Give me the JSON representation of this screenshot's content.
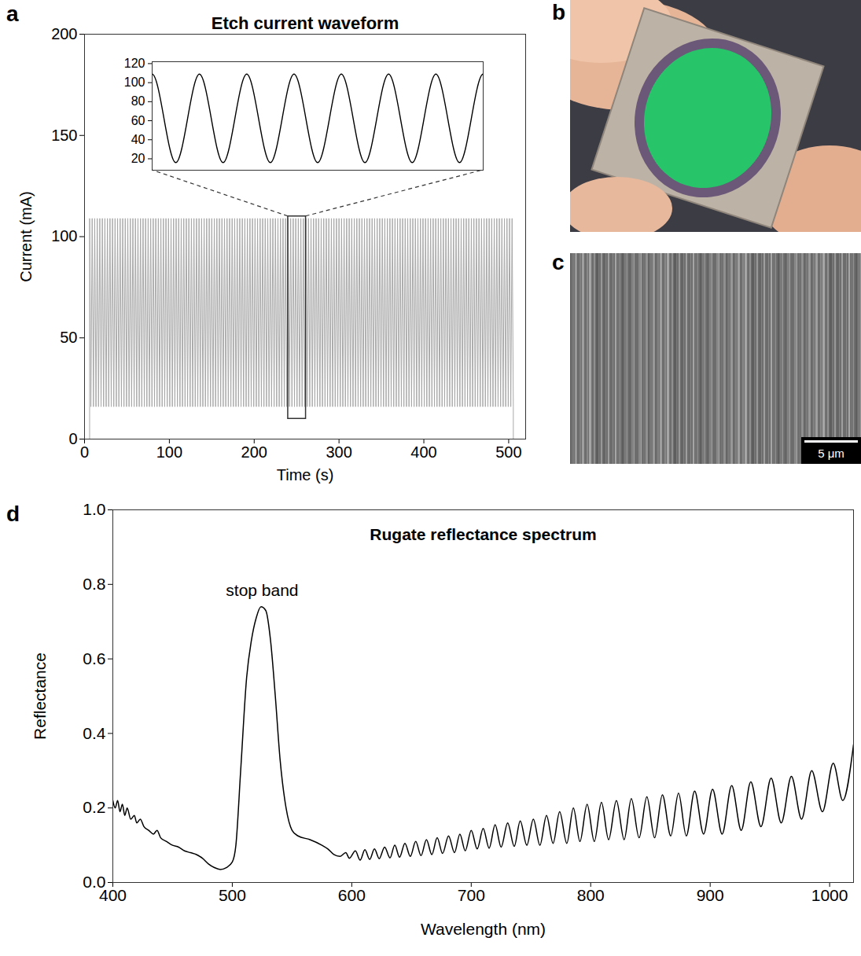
{
  "chart_data": [
    {
      "panel": "a",
      "type": "line",
      "title": "Etch current waveform",
      "x_label": "Time (s)",
      "y_label": "Current (mA)",
      "xlim": [
        0,
        520
      ],
      "ylim": [
        0,
        200
      ],
      "xticks": [
        0,
        100,
        200,
        300,
        400,
        500
      ],
      "yticks": [
        0,
        50,
        100,
        150,
        200
      ],
      "color": "#a8a8a8",
      "x": [
        0,
        6,
        6,
        7.5,
        9,
        10.5,
        12,
        13.5,
        15,
        16.5,
        18,
        19.5,
        21,
        22.5,
        24,
        25.5,
        27,
        28.5,
        30,
        31.5,
        33,
        34.5,
        36,
        37.5,
        39,
        40.5,
        42,
        43.5,
        45,
        46.5,
        48,
        49.5,
        51,
        52.5,
        54,
        55.5,
        57,
        58.5,
        60,
        61.5,
        63,
        64.5,
        66,
        67.5,
        69,
        70.5,
        72,
        73.5,
        75,
        76.5,
        78,
        79.5,
        81,
        82.5,
        84,
        85.5,
        87,
        88.5,
        90,
        91.5,
        93,
        94.5,
        96,
        97.5,
        99,
        100.5,
        102,
        103.5,
        105,
        106.5,
        108,
        109.5,
        111,
        112.5,
        114,
        115.5,
        117,
        118.5,
        120,
        121.5,
        123,
        124.5,
        126,
        127.5,
        129,
        130.5,
        132,
        133.5,
        135,
        136.5,
        138,
        139.5,
        141,
        142.5,
        144,
        145.5,
        147,
        148.5,
        150,
        151.5,
        153,
        154.5,
        156,
        157.5,
        159,
        160.5,
        162,
        163.5,
        165,
        166.5,
        168,
        169.5,
        171,
        172.5,
        174,
        175.5,
        177,
        178.5,
        180,
        181.5,
        183,
        184.5,
        186,
        187.5,
        189,
        190.5,
        192,
        193.5,
        195,
        196.5,
        198,
        199.5,
        201,
        202.5,
        204,
        205.5,
        207,
        208.5,
        210,
        211.5,
        213,
        214.5,
        216,
        217.5,
        219,
        220.5,
        222,
        223.5,
        225,
        226.5,
        228,
        229.5,
        231,
        232.5,
        234,
        235.5,
        237,
        238.5,
        240,
        241.5,
        243,
        244.5,
        246,
        247.5,
        249,
        250.5,
        252,
        253.5,
        255,
        256.5,
        258,
        259.5,
        261,
        262.5,
        264,
        265.5,
        267,
        268.5,
        270,
        271.5,
        273,
        274.5,
        276,
        277.5,
        279,
        280.5,
        282,
        283.5,
        285,
        286.5,
        288,
        289.5,
        291,
        292.5,
        294,
        295.5,
        297,
        298.5,
        300,
        301.5,
        303,
        304.5,
        306,
        307.5,
        309,
        310.5,
        312,
        313.5,
        315,
        316.5,
        318,
        319.5,
        321,
        322.5,
        324,
        325.5,
        327,
        328.5,
        330,
        331.5,
        333,
        334.5,
        336,
        337.5,
        339,
        340.5,
        342,
        343.5,
        345,
        346.5,
        348,
        349.5,
        351,
        352.5,
        354,
        355.5,
        357,
        358.5,
        360,
        361.5,
        363,
        364.5,
        366,
        367.5,
        369,
        370.5,
        372,
        373.5,
        375,
        376.5,
        378,
        379.5,
        381,
        382.5,
        384,
        385.5,
        387,
        388.5,
        390,
        391.5,
        393,
        394.5,
        396,
        397.5,
        399,
        400.5,
        402,
        403.5,
        405,
        406.5,
        408,
        409.5,
        411,
        412.5,
        414,
        415.5,
        417,
        418.5,
        420,
        421.5,
        423,
        424.5,
        426,
        427.5,
        429,
        430.5,
        432,
        433.5,
        435,
        436.5,
        438,
        439.5,
        441,
        442.5,
        444,
        445.5,
        447,
        448.5,
        450,
        451.5,
        453,
        454.5,
        456,
        457.5,
        459,
        460.5,
        462,
        463.5,
        465,
        466.5,
        468,
        469.5,
        471,
        472.5,
        474,
        475.5,
        477,
        478.5,
        480,
        481.5,
        483,
        484.5,
        486,
        487.5,
        489,
        490.5,
        492,
        493.5,
        495,
        496.5,
        498,
        499.5,
        501,
        502.5,
        504,
        505.5,
        505.5,
        520
      ],
      "values": [
        0,
        0,
        109,
        16,
        109,
        16,
        109,
        16,
        109,
        16,
        109,
        16,
        109,
        16,
        109,
        16,
        109,
        16,
        109,
        16,
        109,
        16,
        109,
        16,
        109,
        16,
        109,
        16,
        109,
        16,
        109,
        16,
        109,
        16,
        109,
        16,
        109,
        16,
        109,
        16,
        109,
        16,
        109,
        16,
        109,
        16,
        109,
        16,
        109,
        16,
        109,
        16,
        109,
        16,
        109,
        16,
        109,
        16,
        109,
        16,
        109,
        16,
        109,
        16,
        109,
        16,
        109,
        16,
        109,
        16,
        109,
        16,
        109,
        16,
        109,
        16,
        109,
        16,
        109,
        16,
        109,
        16,
        109,
        16,
        109,
        16,
        109,
        16,
        109,
        16,
        109,
        16,
        109,
        16,
        109,
        16,
        109,
        16,
        109,
        16,
        109,
        16,
        109,
        16,
        109,
        16,
        109,
        16,
        109,
        16,
        109,
        16,
        109,
        16,
        109,
        16,
        109,
        16,
        109,
        16,
        109,
        16,
        109,
        16,
        109,
        16,
        109,
        16,
        109,
        16,
        109,
        16,
        109,
        16,
        109,
        16,
        109,
        16,
        109,
        16,
        109,
        16,
        109,
        16,
        109,
        16,
        109,
        16,
        109,
        16,
        109,
        16,
        109,
        16,
        109,
        16,
        109,
        16,
        109,
        16,
        109,
        16,
        109,
        16,
        109,
        16,
        109,
        16,
        109,
        16,
        109,
        16,
        109,
        16,
        109,
        16,
        109,
        16,
        109,
        16,
        109,
        16,
        109,
        16,
        109,
        16,
        109,
        16,
        109,
        16,
        109,
        16,
        109,
        16,
        109,
        16,
        109,
        16,
        109,
        16,
        109,
        16,
        109,
        16,
        109,
        16,
        109,
        16,
        109,
        16,
        109,
        16,
        109,
        16,
        109,
        16,
        109,
        16,
        109,
        16,
        109,
        16,
        109,
        16,
        109,
        16,
        109,
        16,
        109,
        16,
        109,
        16,
        109,
        16,
        109,
        16,
        109,
        16,
        109,
        16,
        109,
        16,
        109,
        16,
        109,
        16,
        109,
        16,
        109,
        16,
        109,
        16,
        109,
        16,
        109,
        16,
        109,
        16,
        109,
        16,
        109,
        16,
        109,
        16,
        109,
        16,
        109,
        16,
        109,
        16,
        109,
        16,
        109,
        16,
        109,
        16,
        109,
        16,
        109,
        16,
        109,
        16,
        109,
        16,
        109,
        16,
        109,
        16,
        109,
        16,
        109,
        16,
        109,
        16,
        109,
        16,
        109,
        16,
        109,
        16,
        109,
        16,
        109,
        16,
        109,
        16,
        109,
        16,
        109,
        16,
        109,
        16,
        109,
        16,
        109,
        16,
        109,
        16,
        109,
        16,
        109,
        16,
        109,
        16,
        109,
        16,
        109,
        16,
        109,
        16,
        109,
        16,
        109,
        16,
        109,
        16,
        0,
        0
      ],
      "inset": {
        "xlim": [
          240,
          261
        ],
        "ylim": [
          8,
          122
        ],
        "yticks": [
          20,
          40,
          60,
          80,
          100,
          120
        ],
        "tick_labels": "y",
        "color": "#000000",
        "box_ylim": [
          10,
          110
        ]
      }
    },
    {
      "panel": "d",
      "type": "line",
      "title": "Rugate reflectance spectrum",
      "x_label": "Wavelength (nm)",
      "y_label": "Reflectance",
      "xlim": [
        400,
        1020
      ],
      "ylim": [
        0,
        1
      ],
      "xticks": [
        400,
        500,
        600,
        700,
        800,
        900,
        1000
      ],
      "yticks": [
        {
          "value": 0,
          "label": "0.0"
        },
        0.2,
        0.4,
        0.6,
        0.8,
        {
          "value": 1,
          "label": "1.0"
        }
      ],
      "color": "#000000",
      "annotations": [
        {
          "text": "stop band",
          "x": 525,
          "y": 0.77
        }
      ],
      "x": [
        400,
        402,
        404,
        406,
        408,
        410,
        412,
        415,
        418,
        420,
        423,
        426,
        430,
        434,
        437,
        440,
        445,
        450,
        455,
        460,
        465,
        470,
        475,
        480,
        485,
        490,
        495,
        500,
        503,
        507,
        512,
        516,
        520,
        524,
        528,
        532,
        536,
        540,
        545,
        550,
        555,
        565,
        575,
        580,
        585,
        590,
        595,
        598,
        603,
        607,
        611,
        615,
        619,
        623,
        627.5,
        632,
        636,
        640,
        644.5,
        649,
        653.5,
        658,
        662.5,
        667,
        671.5,
        676,
        681,
        686,
        690.5,
        695,
        700,
        705,
        710,
        715,
        720,
        725,
        730.5,
        736,
        741,
        746.5,
        752,
        757.5,
        763,
        768.5,
        774,
        780,
        785.5,
        791,
        797,
        803,
        809,
        815,
        821.5,
        828,
        834,
        840.5,
        847,
        853.5,
        860,
        867,
        873.5,
        880,
        887,
        894.5,
        902,
        910,
        918,
        926,
        934,
        942.5,
        951,
        959.5,
        968,
        976.5,
        985,
        994,
        1003,
        1011,
        1020
      ],
      "values": [
        0.22,
        0.2,
        0.22,
        0.19,
        0.21,
        0.18,
        0.2,
        0.17,
        0.18,
        0.16,
        0.17,
        0.15,
        0.14,
        0.13,
        0.14,
        0.12,
        0.11,
        0.1,
        0.095,
        0.085,
        0.08,
        0.075,
        0.065,
        0.05,
        0.04,
        0.035,
        0.04,
        0.055,
        0.1,
        0.3,
        0.55,
        0.65,
        0.71,
        0.74,
        0.73,
        0.65,
        0.5,
        0.33,
        0.2,
        0.14,
        0.125,
        0.115,
        0.1,
        0.09,
        0.075,
        0.07,
        0.08,
        0.065,
        0.085,
        0.06,
        0.088,
        0.062,
        0.09,
        0.064,
        0.095,
        0.066,
        0.1,
        0.068,
        0.105,
        0.07,
        0.11,
        0.072,
        0.115,
        0.075,
        0.12,
        0.078,
        0.125,
        0.08,
        0.13,
        0.085,
        0.14,
        0.09,
        0.145,
        0.092,
        0.155,
        0.095,
        0.16,
        0.097,
        0.165,
        0.1,
        0.17,
        0.1,
        0.18,
        0.105,
        0.19,
        0.105,
        0.2,
        0.11,
        0.21,
        0.11,
        0.215,
        0.115,
        0.22,
        0.115,
        0.225,
        0.12,
        0.23,
        0.12,
        0.235,
        0.125,
        0.24,
        0.125,
        0.245,
        0.13,
        0.25,
        0.13,
        0.26,
        0.14,
        0.27,
        0.15,
        0.28,
        0.16,
        0.285,
        0.17,
        0.3,
        0.19,
        0.32,
        0.22,
        0.37
      ]
    }
  ],
  "images": [
    {
      "panel": "b"
    },
    {
      "panel": "c",
      "scale_bar": "5 μm"
    }
  ]
}
